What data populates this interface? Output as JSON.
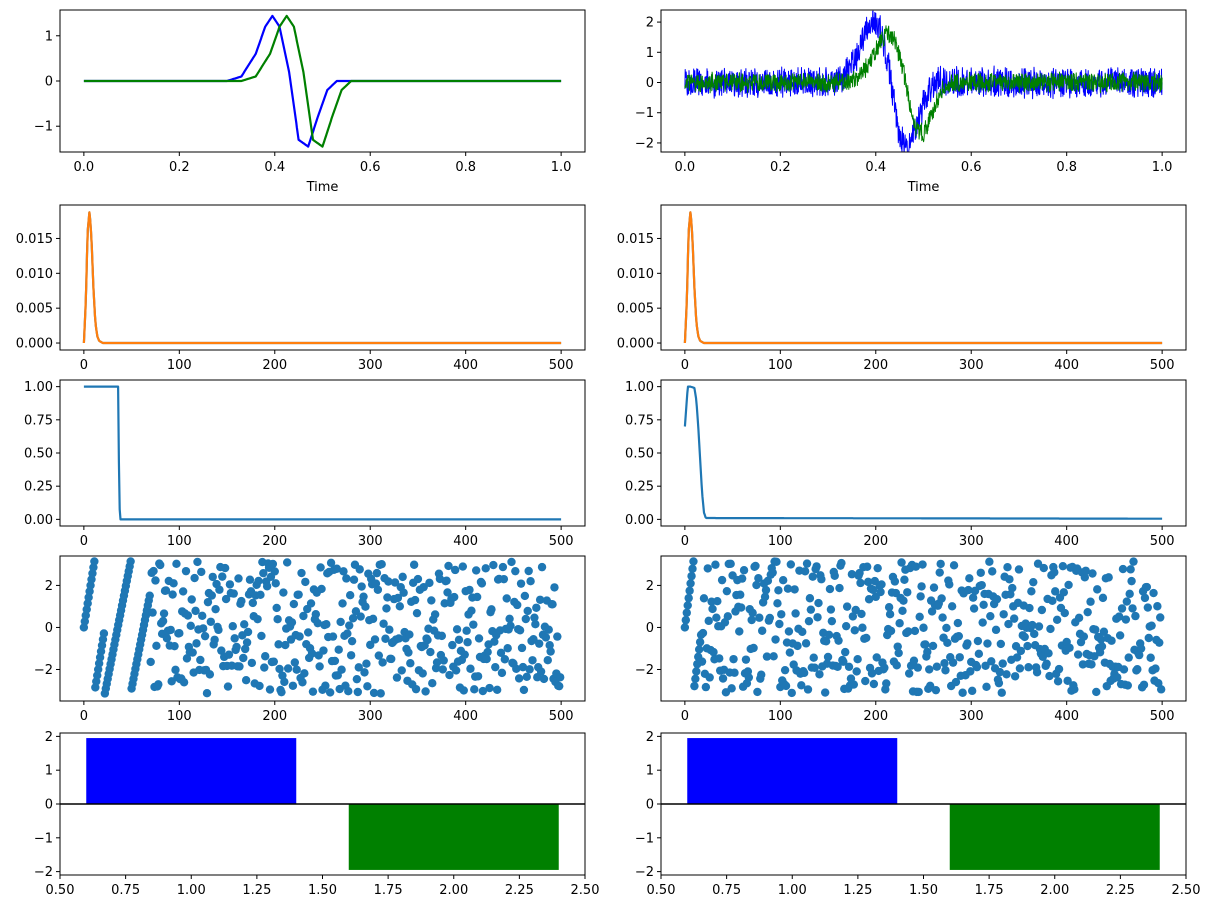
{
  "chart_data": [
    {
      "id": "p1",
      "type": "line",
      "xlabel": "Time",
      "ylabel": "",
      "xlim": [
        -0.05,
        1.05
      ],
      "ylim": [
        -1.57,
        1.57
      ],
      "xticks": [
        "0.0",
        "0.2",
        "0.4",
        "0.6",
        "0.8",
        "1.0"
      ],
      "yticks": [
        "1",
        "0",
        "−1"
      ],
      "series": [
        {
          "color": "#0000ff",
          "x": [
            0.0,
            0.3,
            0.33,
            0.36,
            0.38,
            0.395,
            0.41,
            0.43,
            0.45,
            0.47,
            0.49,
            0.51,
            0.53,
            1.0
          ],
          "y": [
            0,
            0,
            0.1,
            0.6,
            1.2,
            1.44,
            1.2,
            0.2,
            -1.3,
            -1.45,
            -0.8,
            -0.2,
            0,
            0
          ]
        },
        {
          "color": "#008000",
          "x": [
            0.0,
            0.33,
            0.36,
            0.39,
            0.41,
            0.425,
            0.44,
            0.46,
            0.48,
            0.5,
            0.52,
            0.54,
            0.56,
            1.0
          ],
          "y": [
            0,
            0,
            0.1,
            0.6,
            1.2,
            1.44,
            1.2,
            0.2,
            -1.3,
            -1.45,
            -0.8,
            -0.2,
            0,
            0
          ]
        }
      ]
    },
    {
      "id": "p2",
      "type": "line",
      "xlabel": "Time",
      "ylabel": "",
      "xlim": [
        -0.05,
        1.05
      ],
      "ylim": [
        -2.3,
        2.4
      ],
      "xticks": [
        "0.0",
        "0.2",
        "0.4",
        "0.6",
        "0.8",
        "1.0"
      ],
      "yticks": [
        "2",
        "1",
        "0",
        "−1",
        "−2"
      ],
      "series": [
        {
          "color": "#0000ff",
          "noise": 0.55,
          "x": [
            0.0,
            0.3,
            0.33,
            0.36,
            0.38,
            0.395,
            0.41,
            0.43,
            0.45,
            0.47,
            0.49,
            0.51,
            0.53,
            1.0
          ],
          "y": [
            0,
            0,
            0.1,
            0.6,
            1.2,
            1.44,
            1.2,
            0.2,
            -1.3,
            -1.45,
            -0.8,
            -0.2,
            0,
            0
          ]
        },
        {
          "color": "#008000",
          "noise": 0.35,
          "x": [
            0.0,
            0.33,
            0.36,
            0.39,
            0.41,
            0.425,
            0.44,
            0.46,
            0.48,
            0.5,
            0.52,
            0.54,
            0.56,
            1.0
          ],
          "y": [
            0,
            0,
            0.1,
            0.6,
            1.2,
            1.44,
            1.2,
            0.2,
            -1.3,
            -1.45,
            -0.8,
            -0.2,
            0,
            0
          ]
        }
      ]
    },
    {
      "id": "p3",
      "type": "line",
      "xlim": [
        -25,
        525
      ],
      "ylim": [
        -0.001,
        0.0198
      ],
      "xticks": [
        "0",
        "100",
        "200",
        "300",
        "400",
        "500"
      ],
      "yticks": [
        "0.015",
        "0.010",
        "0.005",
        "0.000"
      ],
      "series": [
        {
          "color": "#1f77b4",
          "x": [
            0,
            2,
            4,
            6,
            8,
            10,
            12,
            14,
            16,
            20,
            500
          ],
          "y": [
            0,
            0.006,
            0.016,
            0.019,
            0.015,
            0.008,
            0.003,
            0.001,
            0.0003,
            0,
            0
          ]
        },
        {
          "color": "#ff7f0e",
          "x": [
            0,
            2,
            4,
            6,
            8,
            10,
            12,
            14,
            16,
            20,
            500
          ],
          "y": [
            0,
            0.006,
            0.016,
            0.019,
            0.015,
            0.008,
            0.003,
            0.001,
            0.0003,
            0,
            0
          ]
        }
      ]
    },
    {
      "id": "p4",
      "type": "line",
      "xlim": [
        -25,
        525
      ],
      "ylim": [
        -0.001,
        0.0198
      ],
      "xticks": [
        "0",
        "100",
        "200",
        "300",
        "400",
        "500"
      ],
      "yticks": [
        "0.015",
        "0.010",
        "0.005",
        "0.000"
      ],
      "series": [
        {
          "color": "#1f77b4",
          "x": [
            0,
            2,
            4,
            6,
            8,
            10,
            12,
            14,
            16,
            20,
            500
          ],
          "y": [
            0,
            0.006,
            0.016,
            0.019,
            0.015,
            0.008,
            0.003,
            0.001,
            0.0003,
            0,
            0
          ]
        },
        {
          "color": "#ff7f0e",
          "x": [
            0,
            2,
            4,
            6,
            8,
            10,
            12,
            14,
            16,
            20,
            500
          ],
          "y": [
            0,
            0.006,
            0.016,
            0.019,
            0.015,
            0.008,
            0.003,
            0.001,
            0.0003,
            0,
            0
          ]
        }
      ]
    },
    {
      "id": "p5",
      "type": "line",
      "xlim": [
        -25,
        525
      ],
      "ylim": [
        -0.05,
        1.05
      ],
      "xticks": [
        "0",
        "100",
        "200",
        "300",
        "400",
        "500"
      ],
      "yticks": [
        "1.00",
        "0.75",
        "0.50",
        "0.25",
        "0.00"
      ],
      "series": [
        {
          "color": "#1f77b4",
          "x": [
            0,
            36,
            37,
            38,
            500
          ],
          "y": [
            1,
            1,
            0.15,
            0,
            0
          ]
        }
      ]
    },
    {
      "id": "p6",
      "type": "line",
      "xlim": [
        -25,
        525
      ],
      "ylim": [
        -0.05,
        1.05
      ],
      "xticks": [
        "0",
        "100",
        "200",
        "300",
        "400",
        "500"
      ],
      "yticks": [
        "1.00",
        "0.75",
        "0.50",
        "0.25",
        "0.00"
      ],
      "series": [
        {
          "color": "#1f77b4",
          "x": [
            0,
            3,
            6,
            10,
            12,
            14,
            16,
            18,
            20,
            22,
            500
          ],
          "y": [
            0.7,
            1,
            1,
            0.99,
            0.9,
            0.7,
            0.45,
            0.2,
            0.05,
            0.01,
            0.005
          ]
        }
      ]
    },
    {
      "id": "p7",
      "type": "scatter",
      "xlim": [
        -25,
        525
      ],
      "ylim": [
        -3.5,
        3.4
      ],
      "xticks": [
        "0",
        "100",
        "200",
        "300",
        "400",
        "500"
      ],
      "yticks": [
        "2",
        "0",
        "−2"
      ],
      "color": "#1f77b4",
      "n": 500,
      "linear_until": 70,
      "seed": 7
    },
    {
      "id": "p8",
      "type": "scatter",
      "xlim": [
        -25,
        525
      ],
      "ylim": [
        -3.5,
        3.4
      ],
      "xticks": [
        "0",
        "100",
        "200",
        "300",
        "400",
        "500"
      ],
      "yticks": [
        "2",
        "0",
        "−2"
      ],
      "color": "#1f77b4",
      "n": 500,
      "linear_until": 18,
      "seed": 13
    },
    {
      "id": "p9",
      "type": "bar",
      "xlim": [
        0.5,
        2.5
      ],
      "ylim": [
        -2.1,
        2.1
      ],
      "xticks": [
        "0.50",
        "0.75",
        "1.00",
        "1.25",
        "1.50",
        "1.75",
        "2.00",
        "2.25",
        "2.50"
      ],
      "yticks": [
        "2",
        "1",
        "0",
        "−1",
        "−2"
      ],
      "bars": [
        {
          "x": 1,
          "width": 0.8,
          "value": 1.95,
          "color": "#0000ff"
        },
        {
          "x": 2,
          "width": 0.8,
          "value": -1.95,
          "color": "#008000"
        }
      ]
    },
    {
      "id": "p10",
      "type": "bar",
      "xlim": [
        0.5,
        2.5
      ],
      "ylim": [
        -2.1,
        2.1
      ],
      "xticks": [
        "0.50",
        "0.75",
        "1.00",
        "1.25",
        "1.50",
        "1.75",
        "2.00",
        "2.25",
        "2.50"
      ],
      "yticks": [
        "2",
        "1",
        "0",
        "−1",
        "−2"
      ],
      "bars": [
        {
          "x": 1,
          "width": 0.8,
          "value": 1.95,
          "color": "#0000ff"
        },
        {
          "x": 2,
          "width": 0.8,
          "value": -1.95,
          "color": "#008000"
        }
      ]
    }
  ]
}
